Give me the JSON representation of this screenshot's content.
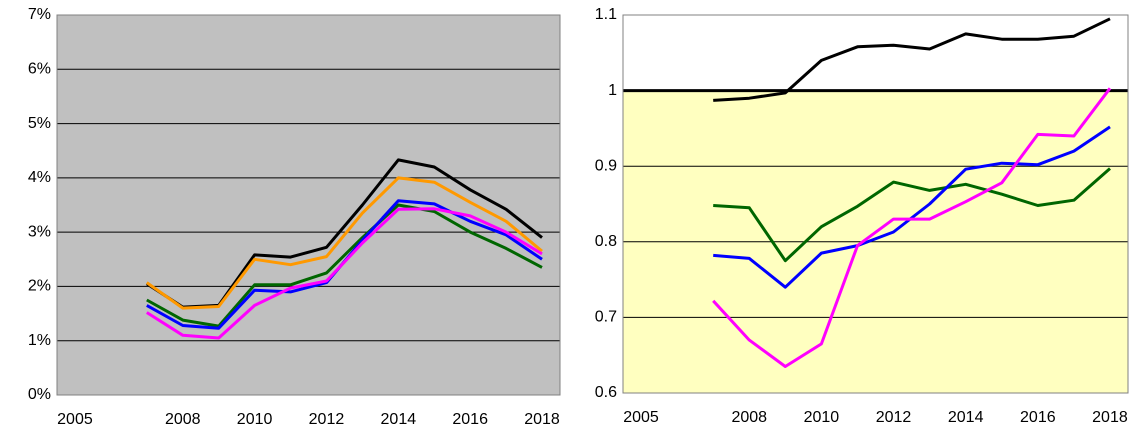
{
  "chart_data": [
    {
      "type": "line",
      "categories": [
        "2005",
        null,
        null,
        "2008",
        null,
        "2010",
        null,
        "2012",
        null,
        "2014",
        null,
        "2016",
        null,
        "2018"
      ],
      "ylim": [
        0,
        7
      ],
      "yticks": [
        {
          "value": 0,
          "label": "0%"
        },
        {
          "value": 1,
          "label": "1%"
        },
        {
          "value": 2,
          "label": "2%"
        },
        {
          "value": 3,
          "label": "3%"
        },
        {
          "value": 4,
          "label": "4%"
        },
        {
          "value": 5,
          "label": "5%"
        },
        {
          "value": 6,
          "label": "6%"
        },
        {
          "value": 7,
          "label": "7%"
        }
      ],
      "grid": true,
      "plot_background": "#c0c0c0",
      "series": [
        {
          "color": "#000000",
          "values": [
            null,
            null,
            2.05,
            1.62,
            1.65,
            2.58,
            2.54,
            2.72,
            3.5,
            4.33,
            4.2,
            3.78,
            3.42,
            2.9
          ]
        },
        {
          "color": "#ff9900",
          "values": [
            null,
            null,
            2.07,
            1.6,
            1.63,
            2.5,
            2.4,
            2.55,
            3.35,
            4.0,
            3.92,
            3.55,
            3.2,
            2.65
          ]
        },
        {
          "color": "#006600",
          "values": [
            null,
            null,
            1.75,
            1.38,
            1.27,
            2.03,
            2.03,
            2.25,
            2.9,
            3.5,
            3.38,
            3.0,
            2.7,
            2.35
          ]
        },
        {
          "color": "#0000ff",
          "values": [
            null,
            null,
            1.65,
            1.28,
            1.23,
            1.93,
            1.9,
            2.07,
            2.85,
            3.58,
            3.52,
            3.2,
            2.95,
            2.5
          ]
        },
        {
          "color": "#ff00ff",
          "values": [
            null,
            null,
            1.52,
            1.1,
            1.05,
            1.65,
            1.97,
            2.1,
            2.8,
            3.42,
            3.43,
            3.3,
            3.0,
            2.6
          ]
        }
      ]
    },
    {
      "type": "line",
      "categories": [
        "2005",
        null,
        null,
        "2008",
        null,
        "2010",
        null,
        "2012",
        null,
        "2014",
        null,
        "2016",
        null,
        "2018"
      ],
      "ylim": [
        0.6,
        1.1
      ],
      "yticks": [
        0.6,
        0.7,
        0.8,
        0.9,
        1,
        1.1
      ],
      "grid": true,
      "plot_background": "#ffffff",
      "reference_line": 1,
      "below_reference_color": "#ffffc0",
      "series": [
        {
          "color": "#000000",
          "values": [
            null,
            null,
            0.987,
            0.99,
            0.997,
            1.04,
            1.058,
            1.06,
            1.055,
            1.075,
            1.068,
            1.068,
            1.072,
            1.095
          ]
        },
        {
          "color": "#006600",
          "values": [
            null,
            null,
            0.848,
            0.845,
            0.775,
            0.82,
            0.847,
            0.879,
            0.868,
            0.876,
            0.863,
            0.848,
            0.855,
            0.897
          ]
        },
        {
          "color": "#0000ff",
          "values": [
            null,
            null,
            0.782,
            0.778,
            0.74,
            0.785,
            0.795,
            0.813,
            0.85,
            0.896,
            0.904,
            0.902,
            0.92,
            0.952
          ]
        },
        {
          "color": "#ff00ff",
          "values": [
            null,
            null,
            0.722,
            0.67,
            0.635,
            0.665,
            0.795,
            0.83,
            0.83,
            0.853,
            0.878,
            0.942,
            0.94,
            1.003
          ]
        }
      ]
    }
  ]
}
